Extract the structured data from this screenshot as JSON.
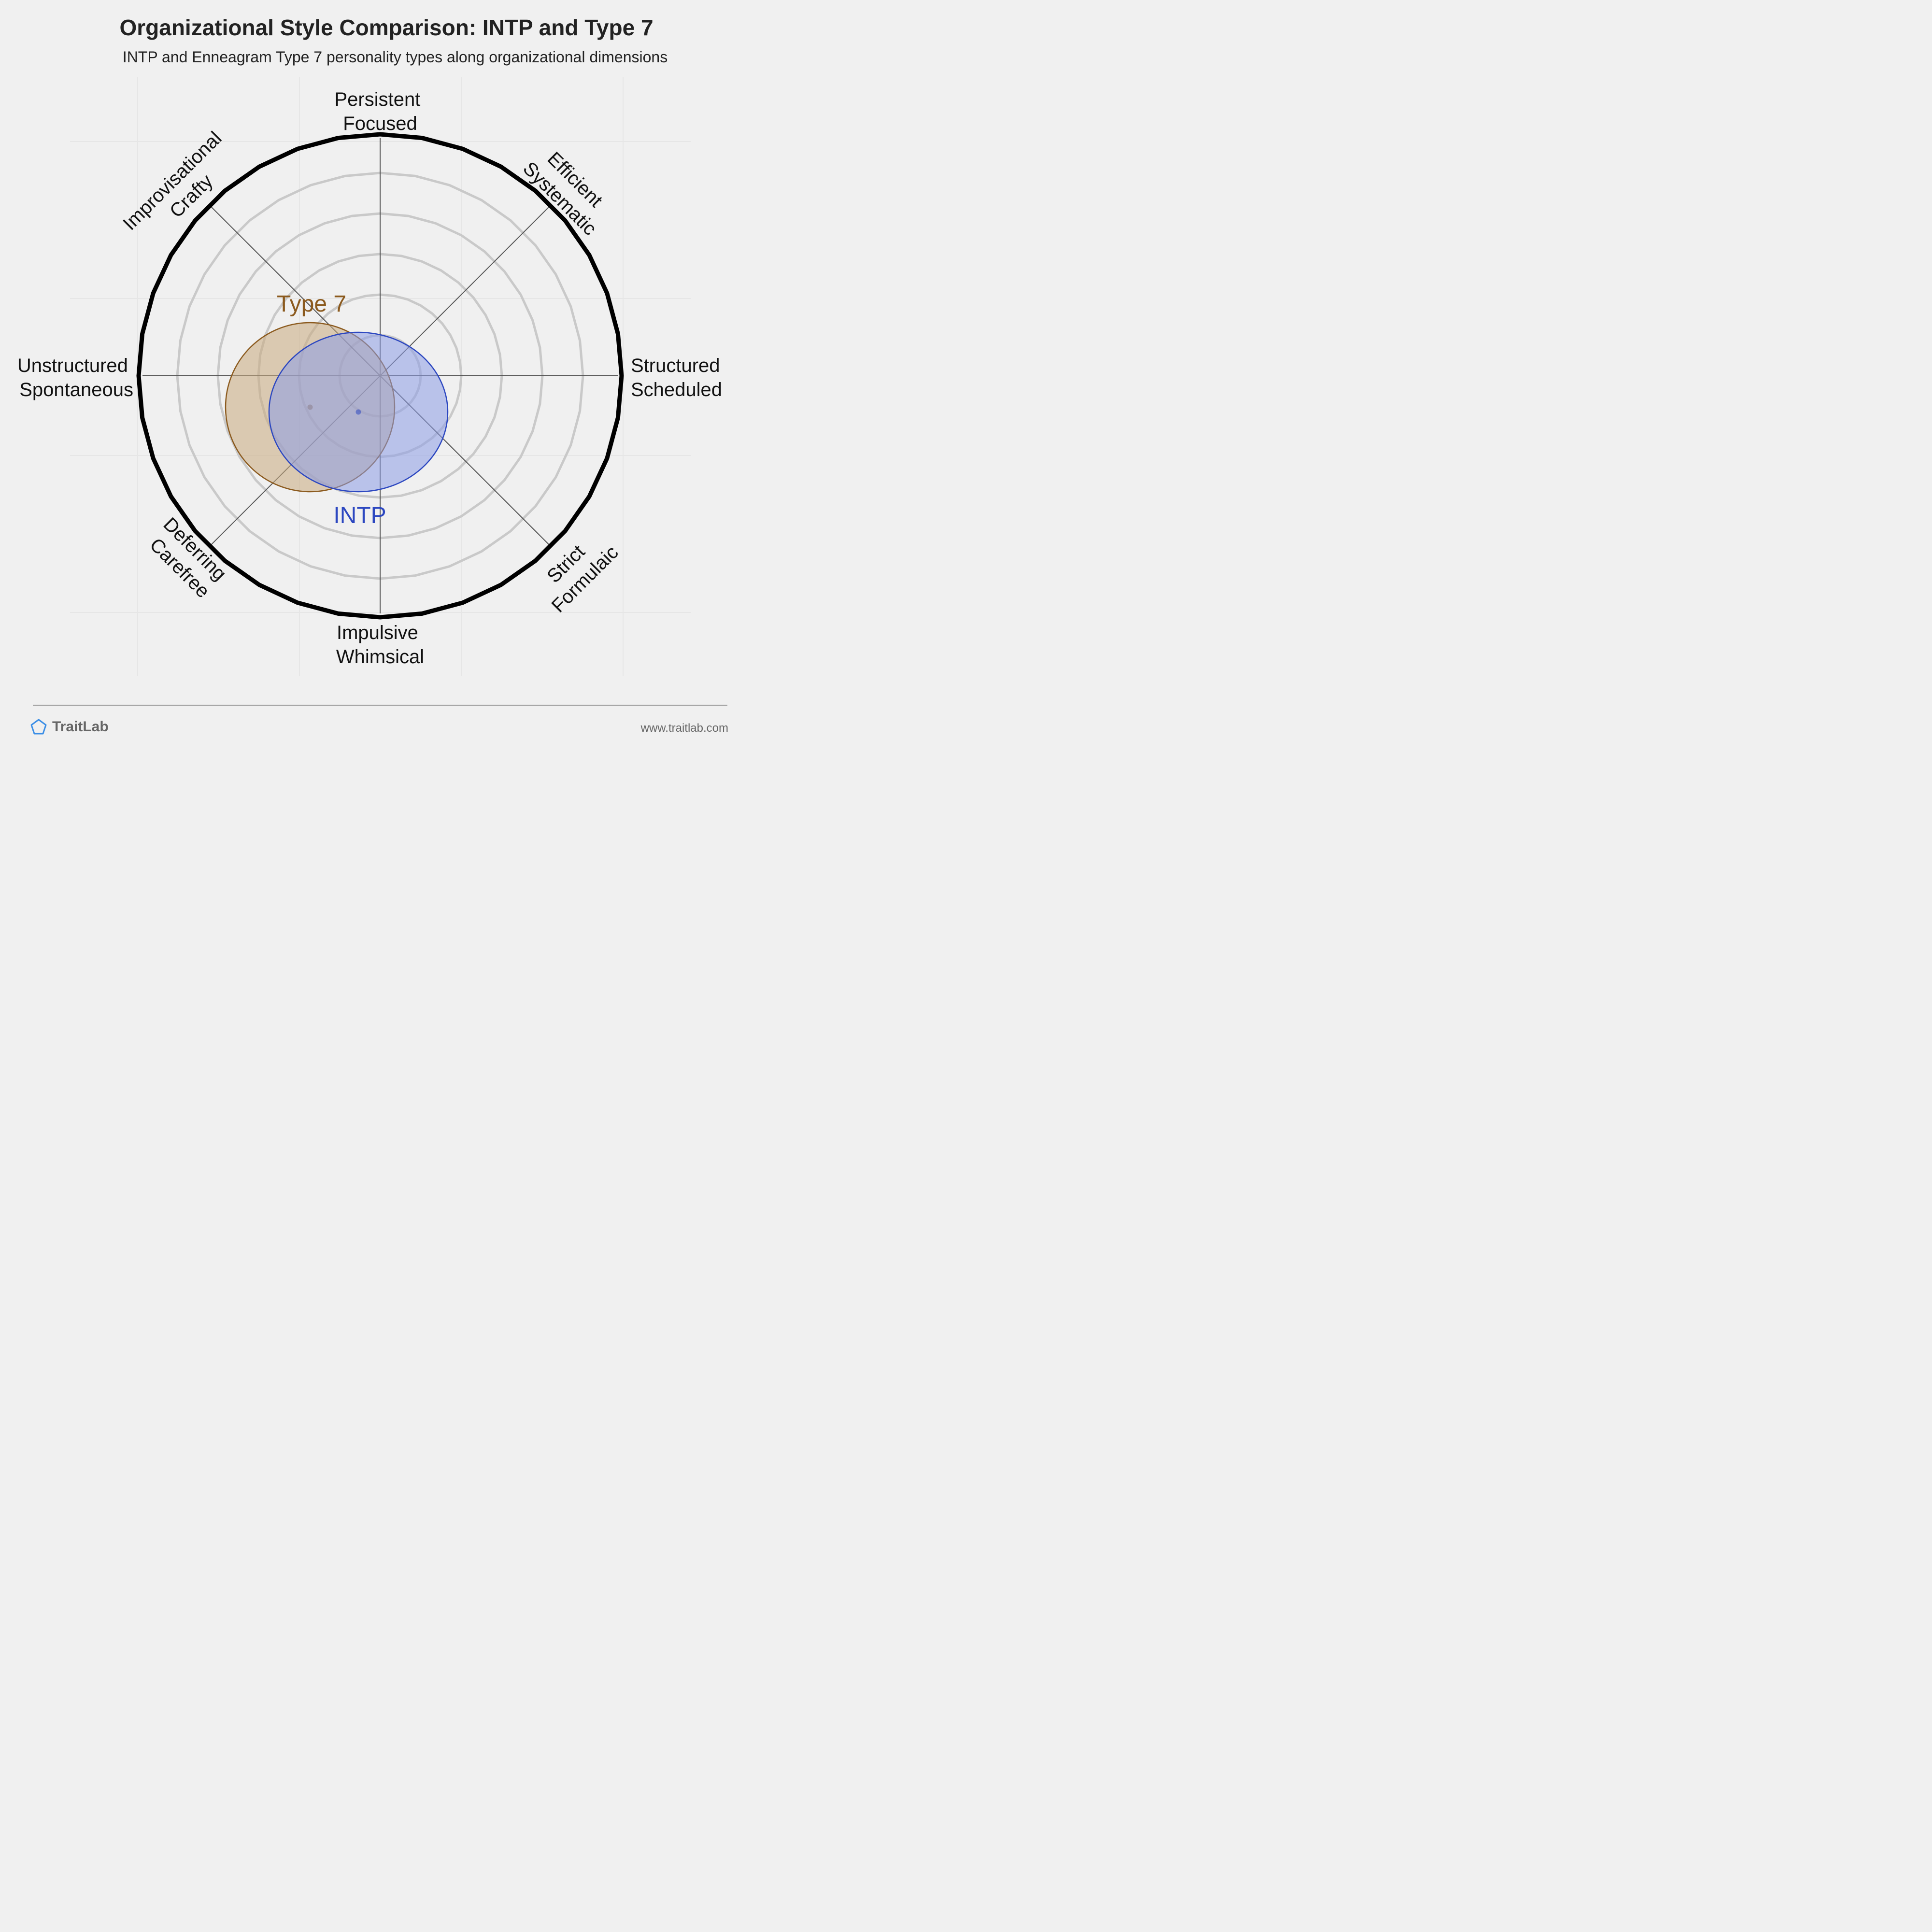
{
  "title": "Organizational Style Comparison: INTP and Type 7",
  "subtitle": "INTP and Enneagram Type 7 personality types along organizational dimensions",
  "axes": {
    "top": [
      "Persistent",
      "Focused"
    ],
    "bottom": [
      "Impulsive",
      "Whimsical"
    ],
    "left": [
      "Unstructured",
      "Spontaneous"
    ],
    "right": [
      "Structured",
      "Scheduled"
    ],
    "top_left": [
      "Improvisational",
      "Crafty"
    ],
    "top_right": [
      "Efficient",
      "Systematic"
    ],
    "bottom_left": [
      "Deferring",
      "Carefree"
    ],
    "bottom_right": [
      "Strict",
      "Formulaic"
    ]
  },
  "types": [
    {
      "label": "Type 7",
      "color": "#8b5a1e",
      "fill": "#c8a97e",
      "center": [
        -29,
        -13
      ],
      "radius": [
        35,
        35
      ]
    },
    {
      "label": "INTP",
      "color": "#2c47c0",
      "fill": "#8d9ce6",
      "center": [
        -9,
        -15
      ],
      "radius": [
        37,
        33
      ]
    }
  ],
  "footer": {
    "brand": "TraitLab",
    "url": "www.traitlab.com"
  }
}
